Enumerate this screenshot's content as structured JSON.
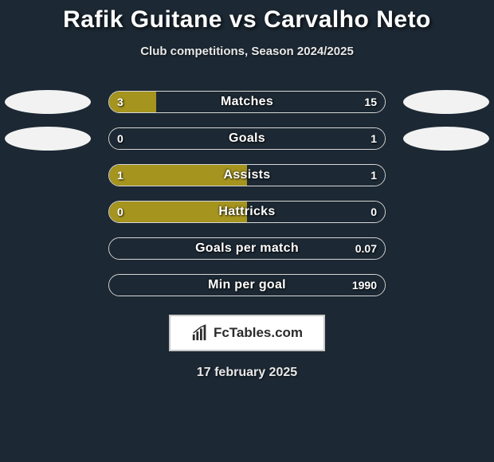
{
  "title": "Rafik Guitane vs Carvalho Neto",
  "subtitle": "Club competitions, Season 2024/2025",
  "date": "17 february 2025",
  "logo_text": "FcTables.com",
  "colors": {
    "background": "#1c2833",
    "left_fill": "#a5941e",
    "right_fill": "#1c2833",
    "left_ellipse_present": "#f2f2f2",
    "left_ellipse_absent": "#1c2833",
    "right_ellipse_present": "#f2f2f2",
    "right_ellipse_absent": "#1c2833",
    "bar_border": "#d7d7d7",
    "title_color": "#ffffff"
  },
  "stats": [
    {
      "label": "Matches",
      "left_val": "3",
      "right_val": "15",
      "left_pct": 17,
      "right_pct": 83,
      "left_ellipse": true,
      "right_ellipse": true
    },
    {
      "label": "Goals",
      "left_val": "0",
      "right_val": "1",
      "left_pct": 0,
      "right_pct": 100,
      "left_ellipse": true,
      "right_ellipse": true
    },
    {
      "label": "Assists",
      "left_val": "1",
      "right_val": "1",
      "left_pct": 50,
      "right_pct": 50,
      "left_ellipse": false,
      "right_ellipse": false
    },
    {
      "label": "Hattricks",
      "left_val": "0",
      "right_val": "0",
      "left_pct": 50,
      "right_pct": 50,
      "left_ellipse": false,
      "right_ellipse": false
    },
    {
      "label": "Goals per match",
      "left_val": "",
      "right_val": "0.07",
      "left_pct": 0,
      "right_pct": 100,
      "left_ellipse": false,
      "right_ellipse": false
    },
    {
      "label": "Min per goal",
      "left_val": "",
      "right_val": "1990",
      "left_pct": 0,
      "right_pct": 100,
      "left_ellipse": false,
      "right_ellipse": false
    }
  ]
}
